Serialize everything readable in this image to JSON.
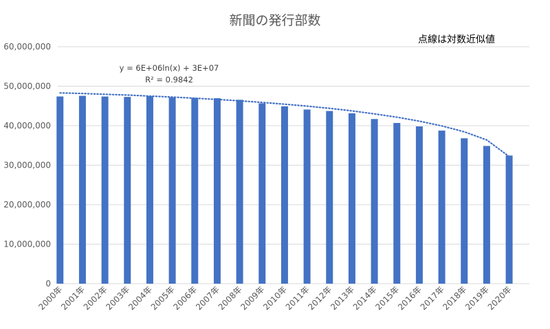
{
  "chart_data": {
    "type": "bar",
    "title": "新聞の発行部数",
    "annotation": "点線は対数近似値",
    "trendline": {
      "type": "logarithmic",
      "equation": "y = 6E+06ln(x) + 3E+07",
      "r_squared": "R² = 0.9842",
      "style": "dotted"
    },
    "categories": [
      "2000年",
      "2001年",
      "2002年",
      "2003年",
      "2004年",
      "2005年",
      "2006年",
      "2007年",
      "2008年",
      "2009年",
      "2010年",
      "2011年",
      "2012年",
      "2013年",
      "2014年",
      "2015年",
      "2016年",
      "2017年",
      "2018年",
      "2019年",
      "2020年"
    ],
    "values": [
      47400000,
      47560000,
      47390000,
      47280000,
      47470000,
      47190000,
      47060000,
      46960000,
      46560000,
      45660000,
      44910000,
      44090000,
      43720000,
      43130000,
      41690000,
      40690000,
      39820000,
      38760000,
      36820000,
      34870000,
      32450000
    ],
    "trend_values": [
      48300000,
      48150000,
      47950000,
      47750000,
      47500000,
      47250000,
      46950000,
      46650000,
      46300000,
      45900000,
      45450000,
      44950000,
      44400000,
      43750000,
      43000000,
      42150000,
      41150000,
      39950000,
      38450000,
      36400000,
      32200000
    ],
    "yticks": [
      "0",
      "10,000,000",
      "20,000,000",
      "30,000,000",
      "40,000,000",
      "50,000,000",
      "60,000,000"
    ],
    "ylim": [
      0,
      60000000
    ],
    "grid": true,
    "legend": "none",
    "colors": {
      "bar": "#4472c4",
      "trend": "#4472c4",
      "grid": "#d9d9d9"
    }
  }
}
